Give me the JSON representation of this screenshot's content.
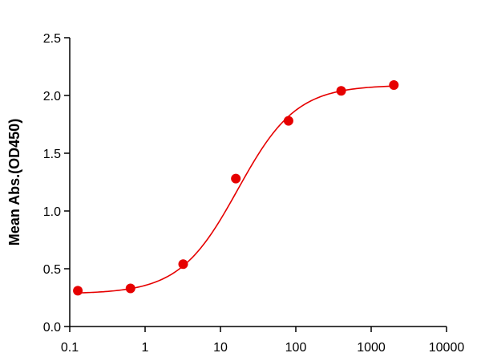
{
  "chart_data": {
    "type": "scatter",
    "title": "",
    "xlabel": "",
    "ylabel": "Mean Abs.(OD450)",
    "xscale": "log",
    "xlim": [
      0.1,
      10000
    ],
    "ylim": [
      0,
      2.5
    ],
    "xticks": [
      "0.1",
      "1",
      "10",
      "100",
      "1000",
      "10000"
    ],
    "yticks": [
      "0.0",
      "0.5",
      "1.0",
      "1.5",
      "2.0",
      "2.5"
    ],
    "grid": false,
    "legend": "none",
    "series": [
      {
        "x": [
          0.128,
          0.64,
          3.2,
          16,
          80,
          400,
          2000
        ],
        "y": [
          0.31,
          0.33,
          0.54,
          1.28,
          1.78,
          2.04,
          2.09
        ],
        "color": "#e60000",
        "fit": "4PL",
        "fit_params": {
          "bottom": 0.283,
          "top": 2.09,
          "ec50": 17,
          "hill": 1.12
        }
      }
    ]
  }
}
